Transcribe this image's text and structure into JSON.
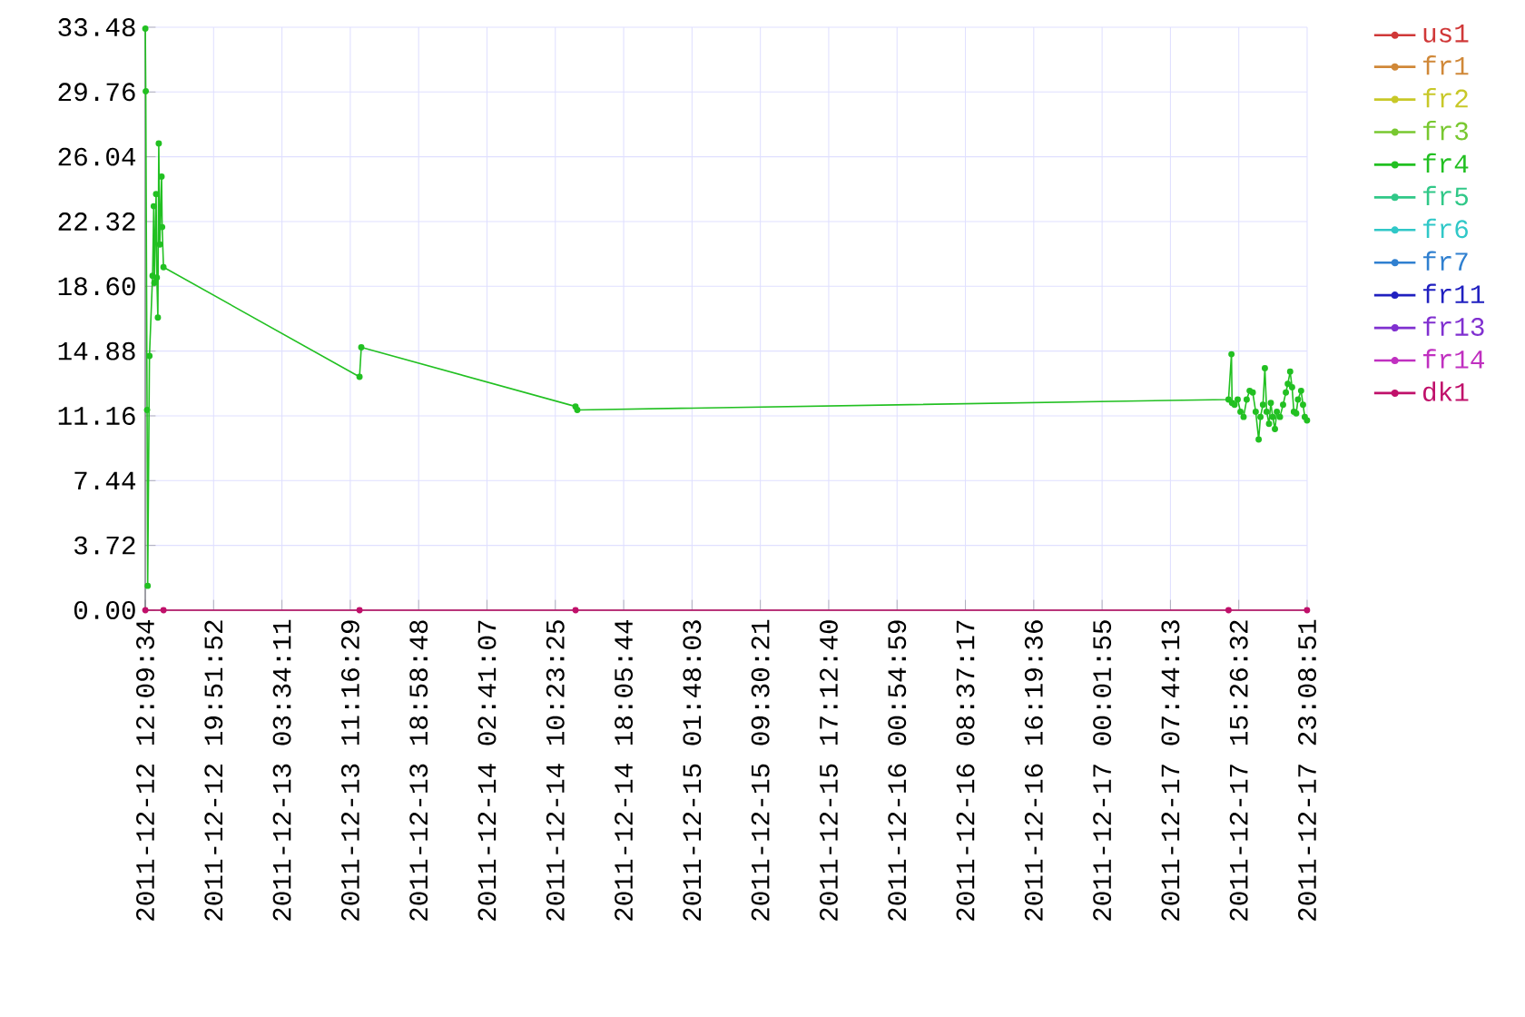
{
  "chart_data": {
    "type": "line",
    "xlim": [
      "2011-12-12T12:09:34",
      "2011-12-17T23:08:51"
    ],
    "ylim": [
      0,
      33.48
    ],
    "xticks": [
      {
        "value": "2011-12-12T12:09:34",
        "label": "2011-12-12 12:09:34"
      },
      {
        "value": "2011-12-12T19:51:52",
        "label": "2011-12-12 19:51:52"
      },
      {
        "value": "2011-12-13T03:34:11",
        "label": "2011-12-13 03:34:11"
      },
      {
        "value": "2011-12-13T11:16:29",
        "label": "2011-12-13 11:16:29"
      },
      {
        "value": "2011-12-13T18:58:48",
        "label": "2011-12-13 18:58:48"
      },
      {
        "value": "2011-12-14T02:41:07",
        "label": "2011-12-14 02:41:07"
      },
      {
        "value": "2011-12-14T10:23:25",
        "label": "2011-12-14 10:23:25"
      },
      {
        "value": "2011-12-14T18:05:44",
        "label": "2011-12-14 18:05:44"
      },
      {
        "value": "2011-12-15T01:48:03",
        "label": "2011-12-15 01:48:03"
      },
      {
        "value": "2011-12-15T09:30:21",
        "label": "2011-12-15 09:30:21"
      },
      {
        "value": "2011-12-15T17:12:40",
        "label": "2011-12-15 17:12:40"
      },
      {
        "value": "2011-12-16T00:54:59",
        "label": "2011-12-16 00:54:59"
      },
      {
        "value": "2011-12-16T08:37:17",
        "label": "2011-12-16 08:37:17"
      },
      {
        "value": "2011-12-16T16:19:36",
        "label": "2011-12-16 16:19:36"
      },
      {
        "value": "2011-12-17T00:01:55",
        "label": "2011-12-17 00:01:55"
      },
      {
        "value": "2011-12-17T07:44:13",
        "label": "2011-12-17 07:44:13"
      },
      {
        "value": "2011-12-17T15:26:32",
        "label": "2011-12-17 15:26:32"
      },
      {
        "value": "2011-12-17T23:08:51",
        "label": "2011-12-17 23:08:51"
      }
    ],
    "yticks": [
      {
        "value": 0,
        "label": "0.00"
      },
      3.72,
      7.44,
      11.16,
      14.88,
      {
        "value": 18.6,
        "label": "18.60"
      },
      22.32,
      26.04,
      29.76,
      33.48
    ],
    "grid": true,
    "legend": "right",
    "marker": "circle",
    "line_style": "solid",
    "x": [
      "2011-12-12T12:10",
      "2011-12-12T14:13",
      "2011-12-13T12:19",
      "2011-12-14T12:40",
      "2011-12-17T14:17",
      "2011-12-17T23:08"
    ],
    "series": [
      {
        "name": "us1",
        "color": "#d03838",
        "values": [
          null,
          null,
          null,
          null,
          null,
          null
        ]
      },
      {
        "name": "fr1",
        "color": "#d08838",
        "values": [
          null,
          null,
          null,
          null,
          null,
          null
        ]
      },
      {
        "name": "fr2",
        "color": "#c8c828",
        "values": [
          null,
          null,
          null,
          null,
          null,
          null
        ]
      },
      {
        "name": "fr3",
        "color": "#78c830",
        "values": [
          null,
          null,
          null,
          null,
          null,
          null
        ]
      },
      {
        "name": "fr4",
        "color": "#22c022",
        "x": [
          "2011-12-12T12:10",
          "2011-12-12T12:13",
          "2011-12-12T12:22",
          "2011-12-12T12:26",
          "2011-12-12T12:38",
          "2011-12-12T12:59",
          "2011-12-12T13:07",
          "2011-12-12T13:11",
          "2011-12-12T13:23",
          "2011-12-12T13:28",
          "2011-12-12T13:35",
          "2011-12-12T13:41",
          "2011-12-12T13:48",
          "2011-12-12T14:00",
          "2011-12-12T14:04",
          "2011-12-12T14:13",
          "2011-12-13T12:19",
          "2011-12-13T12:31",
          "2011-12-14T12:40",
          "2011-12-14T12:52",
          "2011-12-17T14:17",
          "2011-12-17T14:37",
          "2011-12-17T14:41",
          "2011-12-17T14:58",
          "2011-12-17T15:19",
          "2011-12-17T15:38",
          "2011-12-17T15:59",
          "2011-12-17T16:20",
          "2011-12-17T16:40",
          "2011-12-17T17:01",
          "2011-12-17T17:21",
          "2011-12-17T17:41",
          "2011-12-17T17:53",
          "2011-12-17T18:10",
          "2011-12-17T18:23",
          "2011-12-17T18:35",
          "2011-12-17T18:51",
          "2011-12-17T19:03",
          "2011-12-17T19:16",
          "2011-12-17T19:31",
          "2011-12-17T19:44",
          "2011-12-17T20:05",
          "2011-12-17T20:26",
          "2011-12-17T20:45",
          "2011-12-17T20:58",
          "2011-12-17T21:14",
          "2011-12-17T21:27",
          "2011-12-17T21:39",
          "2011-12-17T21:55",
          "2011-12-17T22:07",
          "2011-12-17T22:28",
          "2011-12-17T22:41",
          "2011-12-17T22:53",
          "2011-12-17T23:08"
        ],
        "values": [
          33.4,
          29.8,
          11.5,
          1.4,
          14.6,
          19.2,
          23.2,
          18.8,
          23.9,
          19.1,
          16.8,
          26.8,
          21.0,
          24.9,
          22.0,
          19.7,
          13.4,
          15.1,
          11.7,
          11.5,
          12.1,
          14.7,
          11.9,
          11.8,
          12.1,
          11.4,
          11.1,
          12.1,
          12.6,
          12.5,
          11.4,
          9.8,
          11.1,
          11.8,
          13.9,
          11.4,
          10.7,
          11.9,
          11.1,
          10.4,
          11.4,
          11.1,
          11.8,
          12.5,
          13.0,
          13.7,
          12.8,
          11.4,
          11.3,
          12.1,
          12.6,
          11.8,
          11.1,
          10.9
        ]
      },
      {
        "name": "fr5",
        "color": "#30c888",
        "values": [
          null,
          null,
          null,
          null,
          null,
          null
        ]
      },
      {
        "name": "fr6",
        "color": "#30c8c8",
        "values": [
          null,
          null,
          null,
          null,
          null,
          null
        ]
      },
      {
        "name": "fr7",
        "color": "#3080d0",
        "values": [
          null,
          null,
          null,
          null,
          null,
          null
        ]
      },
      {
        "name": "fr11",
        "color": "#2020c0",
        "values": [
          null,
          null,
          null,
          null,
          null,
          null
        ]
      },
      {
        "name": "fr13",
        "color": "#8030d0",
        "values": [
          null,
          null,
          null,
          null,
          null,
          null
        ]
      },
      {
        "name": "fr14",
        "color": "#c030c0",
        "values": [
          null,
          null,
          null,
          null,
          null,
          null
        ]
      },
      {
        "name": "dk1",
        "color": "#c0106a",
        "values": [
          0,
          0,
          0,
          0,
          0,
          0
        ]
      }
    ]
  }
}
